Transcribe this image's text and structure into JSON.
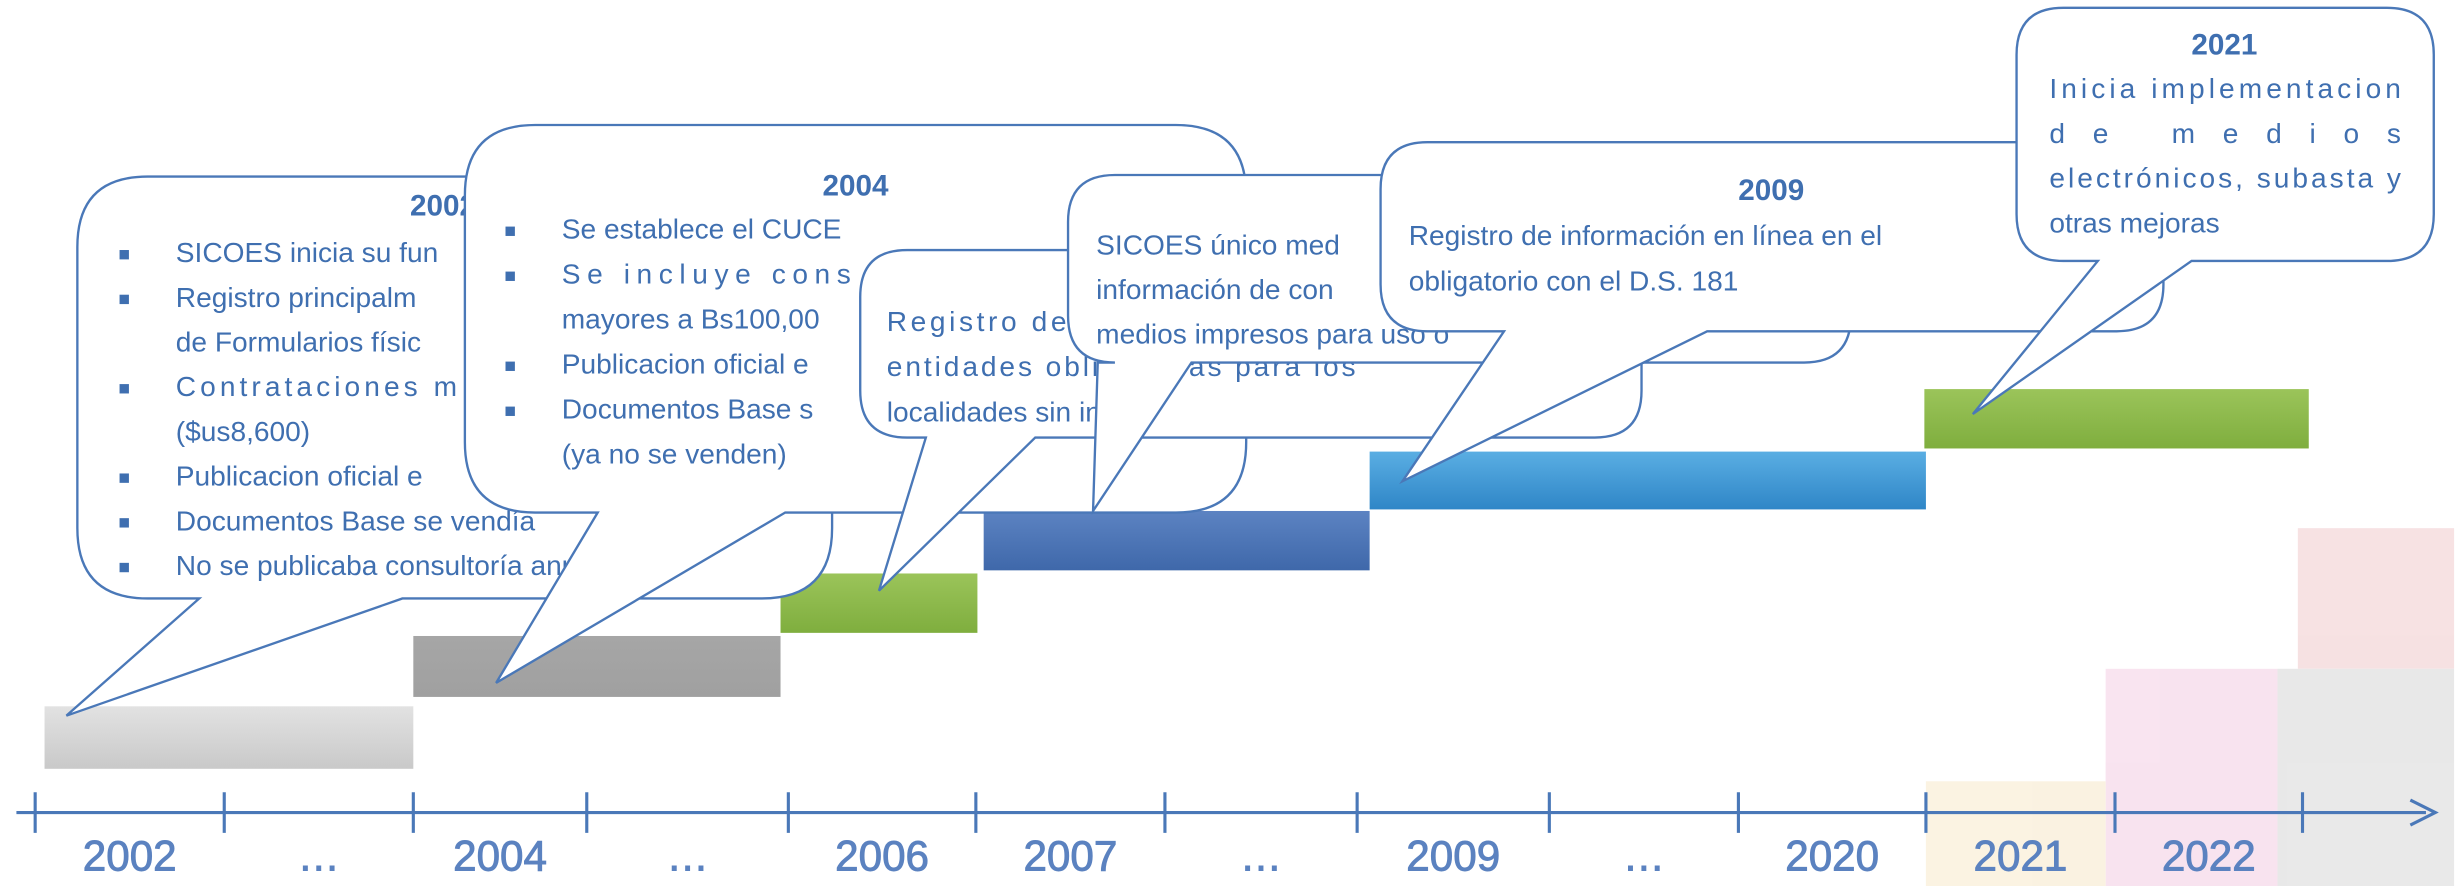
{
  "callouts": [
    {
      "title": "2002",
      "lines": [
        "SICOES inicia su fun",
        "Registro principalm",
        "de Formularios físic",
        "Contrataciones m",
        "($us8,600)",
        "Publicacion oficial e",
        "Documentos Base se vendía",
        "No se publicaba consultoría anual"
      ]
    },
    {
      "title": "2004",
      "lines": [
        "Se establece el CUCE",
        "Se incluye cons",
        "mayores a Bs100,00",
        "Publicacion oficial e",
        "Documentos Base s",
        "(ya no se venden)"
      ]
    },
    {
      "lines": [
        "Registro de",
        "entidades obligatorias para los",
        "localidades sin inte"
      ]
    },
    {
      "lines": [
        "SICOES único med",
        "información de con",
        "medios impresos para uso o"
      ]
    },
    {
      "title": "2009",
      "lines": [
        "Registro de información en línea en el",
        "obligatorio con el D.S. 181"
      ]
    },
    {
      "title": "2021",
      "lines": [
        "Inicia implementacion",
        "de medios",
        "electrónicos, subasta y",
        "otras mejoras"
      ]
    }
  ],
  "axis": {
    "labels": [
      "2002",
      "…",
      "2004",
      "…",
      "2006",
      "2007",
      "…",
      "2009",
      "…",
      "2020",
      "2021",
      "2022"
    ]
  }
}
